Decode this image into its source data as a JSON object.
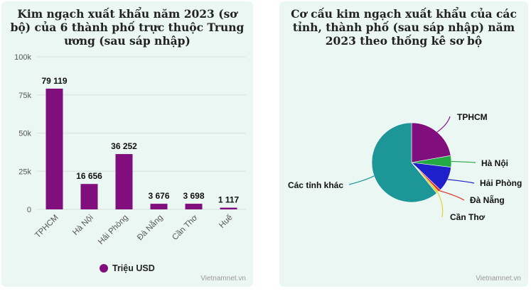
{
  "chart_data": [
    {
      "type": "bar",
      "title": "Kim ngạch xuất khẩu năm 2023 (sơ bộ) của 6 thành phố trực thuộc Trung ương (sau sáp nhập)",
      "categories": [
        "TPHCM",
        "Hà Nội",
        "Hải Phòng",
        "Đà Nẵng",
        "Cần Thơ",
        "Huế"
      ],
      "series": [
        {
          "name": "Triệu USD",
          "color": "#800f7d",
          "values": [
            79119,
            16656,
            36252,
            3676,
            3698,
            1117
          ]
        }
      ],
      "data_labels": [
        "79 119",
        "16 656",
        "36 252",
        "3 676",
        "3 698",
        "1 117"
      ],
      "ylim": [
        0,
        100000
      ],
      "yticks": [
        0,
        25000,
        50000,
        75000,
        100000
      ],
      "ytick_labels": [
        "0",
        "25k",
        "50k",
        "75k",
        "100k"
      ],
      "grid": true,
      "legend_position": "bottom",
      "credit": "Vietnamnet.vn"
    },
    {
      "type": "pie",
      "title": "Cơ cấu kim ngạch xuất khẩu của các tỉnh, thành phố (sau sáp nhập) năm 2023 theo thống kê sơ bộ",
      "slices": [
        {
          "label": "TPHCM",
          "value": 22.2,
          "color": "#800f7d"
        },
        {
          "label": "Hà Nội",
          "value": 4.7,
          "color": "#22a845"
        },
        {
          "label": "Hải Phòng",
          "value": 10.2,
          "color": "#1f1fcc"
        },
        {
          "label": "Đà Nẵng",
          "value": 1.0,
          "color": "#e0301e"
        },
        {
          "label": "Cần Thơ",
          "value": 1.0,
          "color": "#e7d12a"
        },
        {
          "label": "Các tỉnh khác",
          "value": 60.9,
          "color": "#1d9697"
        }
      ],
      "credit": "Vietnamnet.vn"
    }
  ]
}
